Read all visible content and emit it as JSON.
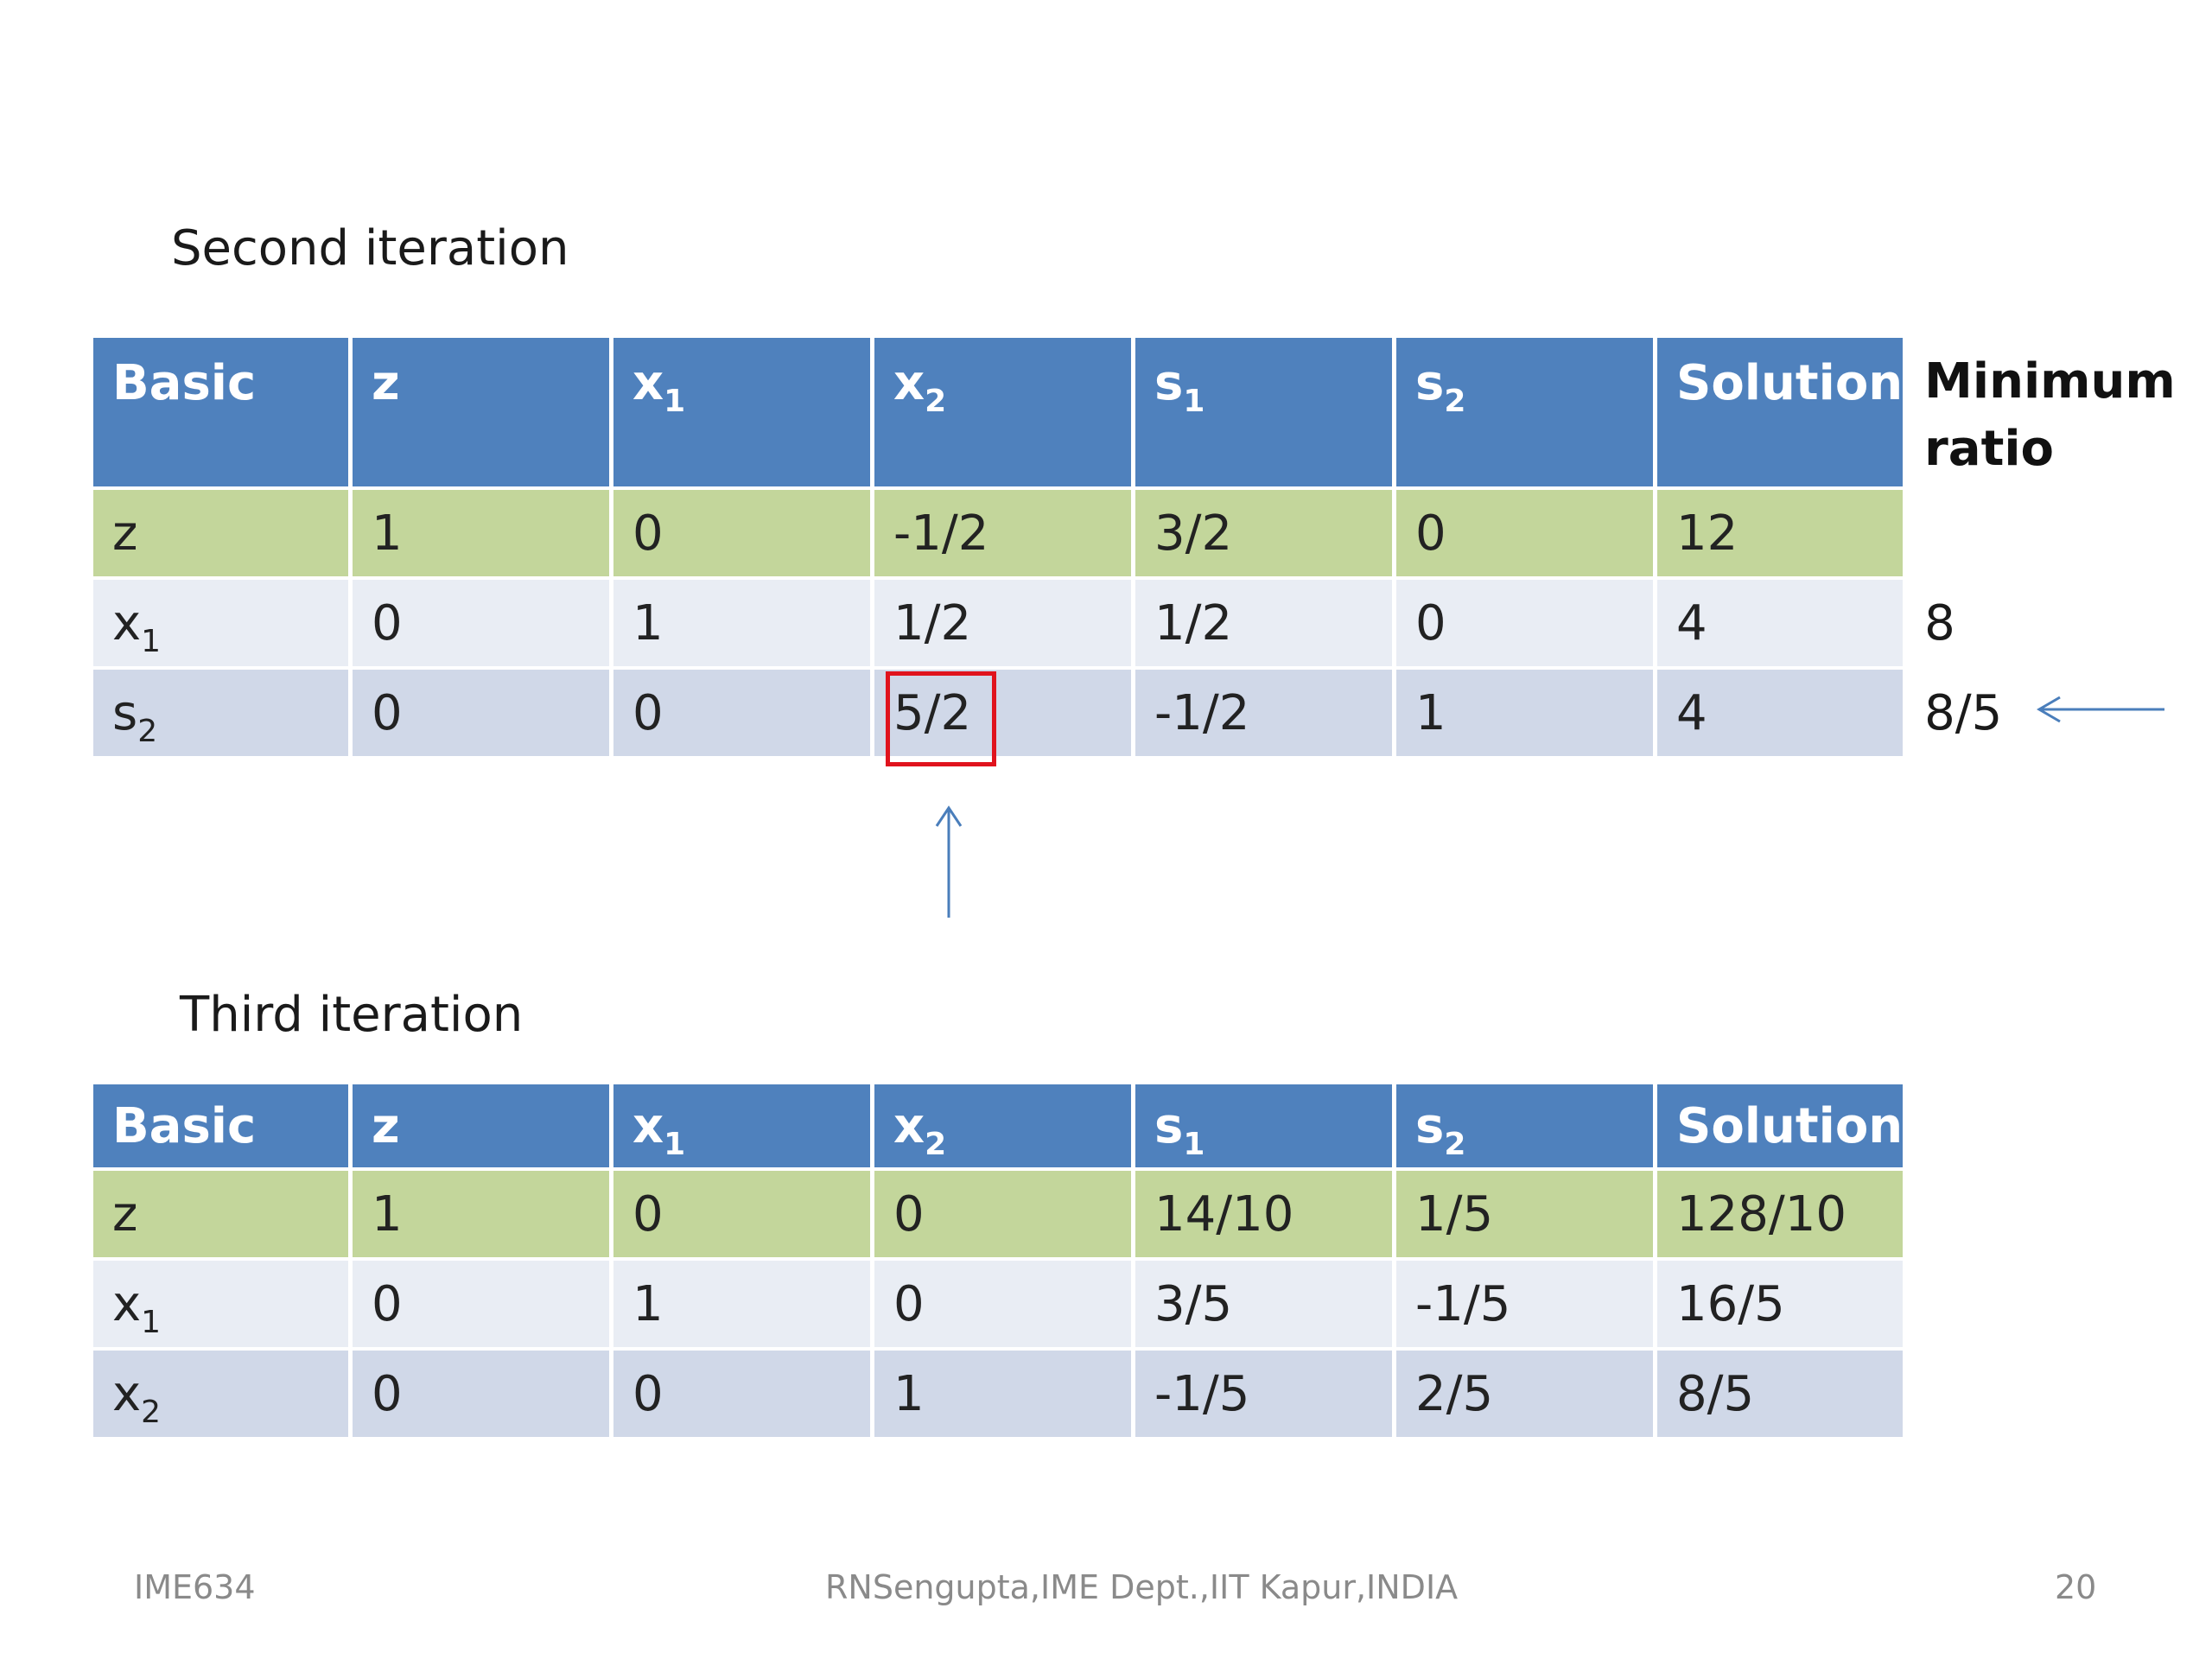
{
  "slide": {
    "second_heading": "Second iteration",
    "third_heading": "Third iteration",
    "footer": {
      "left": "IME634",
      "center": "RNSengupta,IME Dept.,IIT Kapur,INDIA",
      "right": "20"
    }
  },
  "table_second": {
    "headers": [
      {
        "base": "Basic",
        "sub": ""
      },
      {
        "base": "z",
        "sub": ""
      },
      {
        "base": "x",
        "sub": "1"
      },
      {
        "base": "x",
        "sub": "2"
      },
      {
        "base": "s",
        "sub": "1"
      },
      {
        "base": "s",
        "sub": "2"
      },
      {
        "base": "Solution",
        "sub": ""
      }
    ],
    "ratio_header_line1": "Minimum",
    "ratio_header_line2": "ratio",
    "rows": [
      {
        "basic": {
          "base": "z",
          "sub": ""
        },
        "cells": [
          "1",
          "0",
          "-1/2",
          "3/2",
          "0",
          "12"
        ],
        "ratio": ""
      },
      {
        "basic": {
          "base": "x",
          "sub": "1"
        },
        "cells": [
          "0",
          "1",
          "1/2",
          "1/2",
          "0",
          "4"
        ],
        "ratio": "8"
      },
      {
        "basic": {
          "base": "s",
          "sub": "2"
        },
        "cells": [
          "0",
          "0",
          "5/2",
          "-1/2",
          "1",
          "4"
        ],
        "ratio": "8/5"
      }
    ]
  },
  "table_third": {
    "headers": [
      {
        "base": "Basic",
        "sub": ""
      },
      {
        "base": "z",
        "sub": ""
      },
      {
        "base": "x",
        "sub": "1"
      },
      {
        "base": "x",
        "sub": "2"
      },
      {
        "base": "s",
        "sub": "1"
      },
      {
        "base": "s",
        "sub": "2"
      },
      {
        "base": "Solution",
        "sub": ""
      }
    ],
    "rows": [
      {
        "basic": {
          "base": "z",
          "sub": ""
        },
        "cells": [
          "1",
          "0",
          "0",
          "14/10",
          "1/5",
          "128/10"
        ]
      },
      {
        "basic": {
          "base": "x",
          "sub": "1"
        },
        "cells": [
          "0",
          "1",
          "0",
          "3/5",
          "-1/5",
          "16/5"
        ]
      },
      {
        "basic": {
          "base": "x",
          "sub": "2"
        },
        "cells": [
          "0",
          "0",
          "1",
          "-1/5",
          "2/5",
          "8/5"
        ]
      }
    ]
  },
  "colors": {
    "header_blue": "#4f81bd",
    "row_green": "#c3d69b",
    "row_light": "#e9edf4",
    "row_mid": "#d0d8e8",
    "pivot_red": "#e0131d",
    "arrow_blue": "#4a7ebb"
  }
}
